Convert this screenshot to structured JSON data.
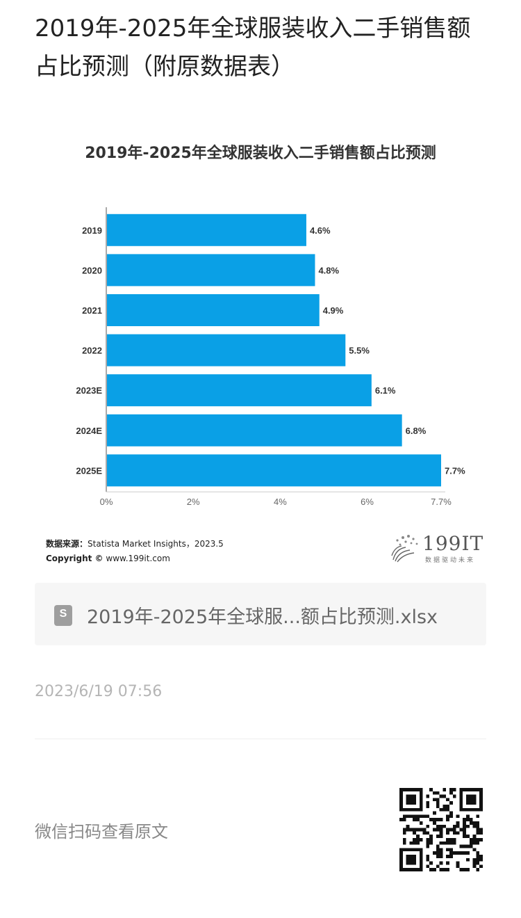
{
  "page": {
    "title": "2019年-2025年全球服装收入二手销售额占比预测（附原数据表）"
  },
  "chart_data": {
    "type": "bar",
    "orientation": "horizontal",
    "title": "2019年-2025年全球服装收入二手销售额占比预测",
    "categories": [
      "2019",
      "2020",
      "2021",
      "2022",
      "2023E",
      "2024E",
      "2025E"
    ],
    "values": [
      4.6,
      4.8,
      4.9,
      5.5,
      6.1,
      6.8,
      7.7
    ],
    "value_labels": [
      "4.6%",
      "4.8%",
      "4.9%",
      "5.5%",
      "6.1%",
      "6.8%",
      "7.7%"
    ],
    "x_ticks": [
      0,
      2,
      4,
      6,
      7.7
    ],
    "x_tick_labels": [
      "0%",
      "2%",
      "4%",
      "6%",
      "7.7%"
    ],
    "xlim": [
      0,
      7.7
    ],
    "xlabel": "",
    "ylabel": "",
    "grid": false,
    "bar_color": "#0aa0e6"
  },
  "source": {
    "label": "数据来源：",
    "text": "Statista Market Insights，2023.5",
    "copyright_label": "Copyright ©",
    "copyright_text": "www.199it.com"
  },
  "logo": {
    "text": "199IT",
    "tagline": "数据驱动未来"
  },
  "attachment": {
    "icon": "spreadsheet-icon",
    "icon_letter": "S",
    "filename": "2019年-2025年全球服...额占比预测.xlsx"
  },
  "timestamp": "2023/6/19 07:56",
  "footer": {
    "scan_text": "微信扫码查看原文",
    "qr_icon": "qr-code-icon"
  },
  "colors": {
    "bar": "#0aa0e6",
    "file_card_bg": "#f6f6f6",
    "timestamp": "#b5b5b5"
  }
}
